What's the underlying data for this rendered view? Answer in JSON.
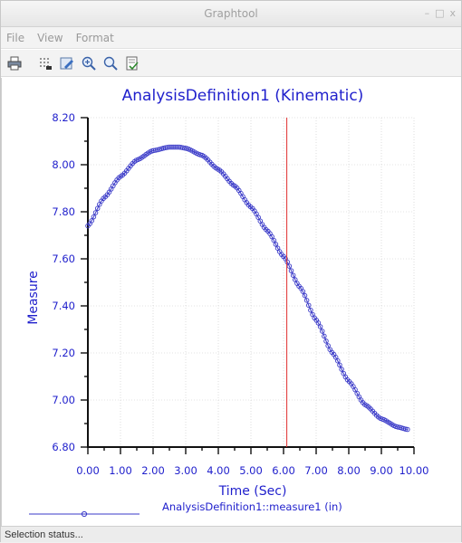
{
  "window": {
    "title": "Graphtool",
    "controls": {
      "minimize": "–",
      "maximize": "□",
      "close": "x"
    }
  },
  "menu": {
    "items": [
      "File",
      "View",
      "Format"
    ]
  },
  "toolbar": {
    "buttons": [
      "print-icon",
      "grid-icon",
      "edit-icon",
      "zoom-in-icon",
      "zoom-fit-icon",
      "export-icon"
    ]
  },
  "status": {
    "text": "Selection status..."
  },
  "colors": {
    "series": "#3a3ac8",
    "cursor": "#e03030",
    "title": "#1f1fcc"
  },
  "chart_data": {
    "type": "line",
    "title": "AnalysisDefinition1 (Kinematic)",
    "xlabel": "Time (Sec)",
    "ylabel": "Measure",
    "xlim": [
      0,
      10
    ],
    "ylim": [
      6.8,
      8.2
    ],
    "x_ticks": [
      "0.00",
      "1.00",
      "2.00",
      "3.00",
      "4.00",
      "5.00",
      "6.00",
      "7.00",
      "8.00",
      "9.00",
      "10.00"
    ],
    "y_ticks": [
      "6.80",
      "7.00",
      "7.20",
      "7.40",
      "7.60",
      "7.80",
      "8.00",
      "8.20"
    ],
    "grid": true,
    "cursor_x": 6.1,
    "series": [
      {
        "name": "AnalysisDefinition1::measure1 (in)",
        "x": [
          0,
          0.5,
          1,
          1.5,
          2,
          2.5,
          2.8,
          3,
          3.5,
          4,
          4.5,
          5,
          5.5,
          6,
          6.5,
          7,
          7.5,
          8,
          8.5,
          9,
          9.5,
          9.8
        ],
        "values": [
          7.74,
          7.86,
          7.95,
          8.02,
          8.06,
          8.075,
          8.075,
          8.07,
          8.04,
          7.98,
          7.91,
          7.82,
          7.72,
          7.61,
          7.48,
          7.34,
          7.2,
          7.08,
          6.98,
          6.92,
          6.885,
          6.875
        ]
      }
    ]
  }
}
